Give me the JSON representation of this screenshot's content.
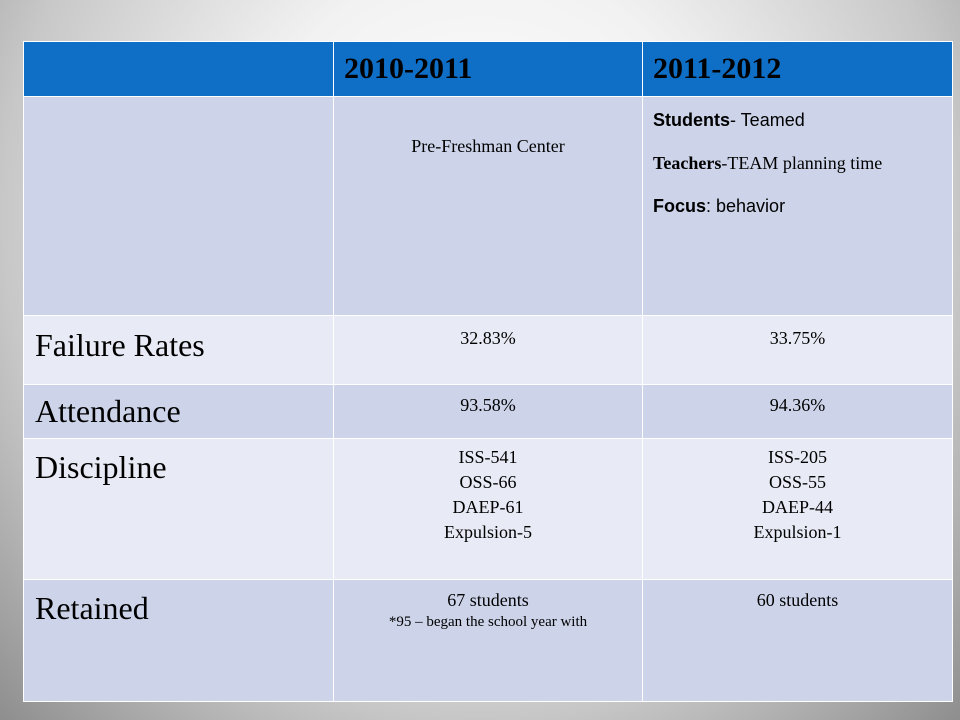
{
  "header": {
    "col1": "",
    "col2": "2010-2011",
    "col3": "2011-2012"
  },
  "program_row": {
    "col2": "Pre-Freshman Center",
    "col3": [
      {
        "bold": "Students",
        "rest": "- Teamed"
      },
      {
        "bold": "Teachers",
        "rest": "-TEAM planning time"
      },
      {
        "bold": "Focus",
        "rest": ": behavior"
      }
    ]
  },
  "failure_rates": {
    "label": "Failure Rates",
    "col2": "32.83%",
    "col3": "33.75%"
  },
  "attendance": {
    "label": "Attendance",
    "col2": "93.58%",
    "col3": "94.36%"
  },
  "discipline": {
    "label": "Discipline",
    "col2": [
      "ISS-541",
      "OSS-66",
      "DAEP-61",
      "Expulsion-5"
    ],
    "col3": [
      "ISS-205",
      "OSS-55",
      "DAEP-44",
      "Expulsion-1"
    ]
  },
  "retained": {
    "label": "Retained",
    "col2": "67 students",
    "col2_note": "*95 – began the school year with",
    "col3": "60 students"
  },
  "colors": {
    "header_bg": "#0f6fc6",
    "row_dark": "#cdd4ea",
    "row_light": "#e8ebf5"
  }
}
